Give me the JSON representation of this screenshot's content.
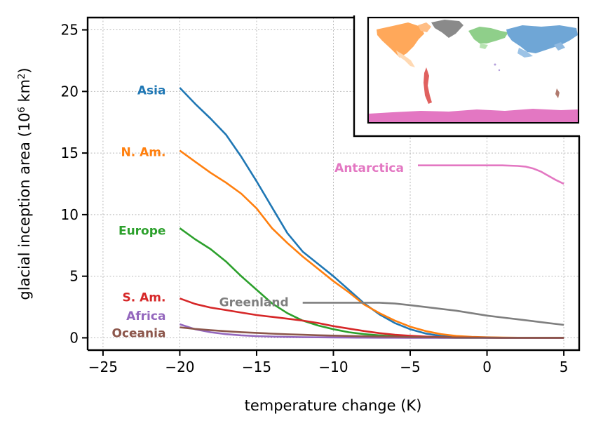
{
  "chart_data": {
    "type": "line",
    "xlabel": "temperature change (K)",
    "ylabel": {
      "main": "glacial inception area (10",
      "sup1": "6",
      "mid": " km",
      "sup2": "2",
      "end": ")"
    },
    "xlim": [
      -26,
      6
    ],
    "ylim": [
      -1,
      26
    ],
    "xticks": [
      -25,
      -20,
      -15,
      -10,
      -5,
      0,
      5
    ],
    "xtick_labels": [
      "−25",
      "−20",
      "−15",
      "−10",
      "−5",
      "0",
      "5"
    ],
    "yticks": [
      0,
      5,
      10,
      15,
      20,
      25
    ],
    "ytick_labels": [
      "0",
      "5",
      "10",
      "15",
      "20",
      "25"
    ],
    "grid": true,
    "legend": "inline labels at line starts",
    "series": [
      {
        "name": "Asia",
        "color": "#1f77b4",
        "label_y": 20.1,
        "x": [
          -20,
          -19,
          -18,
          -17,
          -16,
          -15,
          -14,
          -13,
          -12,
          -11,
          -10,
          -9,
          -8,
          -7,
          -6,
          -5,
          -4,
          -3,
          -2,
          -1,
          0,
          1,
          2,
          3,
          4,
          5
        ],
        "y": [
          20.3,
          19.0,
          17.8,
          16.5,
          14.7,
          12.7,
          10.6,
          8.5,
          7.0,
          6.0,
          5.0,
          3.9,
          2.8,
          1.9,
          1.2,
          0.7,
          0.35,
          0.15,
          0.07,
          0.03,
          0.01,
          0.0,
          0.0,
          0.0,
          0.0,
          0.0
        ]
      },
      {
        "name": "N. Am.",
        "color": "#ff7f0e",
        "label_y": 15.1,
        "x": [
          -20,
          -19,
          -18,
          -17,
          -16,
          -15,
          -14,
          -13,
          -12,
          -11,
          -10,
          -9,
          -8,
          -7,
          -6,
          -5,
          -4,
          -3,
          -2,
          -1,
          0,
          1,
          2,
          3,
          4,
          5
        ],
        "y": [
          15.2,
          14.3,
          13.4,
          12.6,
          11.7,
          10.5,
          8.9,
          7.7,
          6.6,
          5.6,
          4.6,
          3.7,
          2.7,
          2.0,
          1.4,
          0.9,
          0.55,
          0.3,
          0.15,
          0.08,
          0.04,
          0.02,
          0.01,
          0.0,
          0.0,
          0.0
        ]
      },
      {
        "name": "Europe",
        "color": "#2ca02c",
        "label_y": 8.7,
        "x": [
          -20,
          -19,
          -18,
          -17,
          -16,
          -15,
          -14,
          -13,
          -12,
          -11,
          -10,
          -9,
          -8,
          -7,
          -6,
          -5,
          -4,
          -3,
          -2,
          -1,
          0,
          1,
          2,
          3,
          4,
          5
        ],
        "y": [
          8.9,
          8.0,
          7.2,
          6.2,
          5.0,
          3.9,
          2.8,
          2.0,
          1.4,
          1.0,
          0.7,
          0.45,
          0.3,
          0.2,
          0.12,
          0.06,
          0.03,
          0.01,
          0.0,
          0.0,
          0.0,
          0.0,
          0.0,
          0.0,
          0.0,
          0.0
        ]
      },
      {
        "name": "S. Am.",
        "color": "#d62728",
        "label_y": 3.3,
        "x": [
          -20,
          -19,
          -18,
          -17,
          -16,
          -15,
          -14,
          -13,
          -12,
          -11,
          -10,
          -9,
          -8,
          -7,
          -6,
          -5,
          -4,
          -3,
          -2,
          -1,
          0,
          1,
          2,
          3,
          4,
          5
        ],
        "y": [
          3.2,
          2.75,
          2.45,
          2.25,
          2.05,
          1.85,
          1.7,
          1.55,
          1.4,
          1.2,
          0.95,
          0.75,
          0.55,
          0.38,
          0.25,
          0.16,
          0.1,
          0.06,
          0.03,
          0.02,
          0.01,
          0.0,
          0.0,
          0.0,
          0.0,
          0.0
        ]
      },
      {
        "name": "Greenland",
        "color": "#7f7f7f",
        "label_y": 2.9,
        "x": [
          -12,
          -11,
          -10,
          -9,
          -8,
          -7,
          -6,
          -5,
          -4,
          -3,
          -2,
          -1,
          0,
          1,
          2,
          3,
          4,
          5
        ],
        "y": [
          2.85,
          2.85,
          2.85,
          2.85,
          2.85,
          2.85,
          2.78,
          2.65,
          2.5,
          2.35,
          2.2,
          2.0,
          1.8,
          1.65,
          1.5,
          1.35,
          1.2,
          1.05
        ]
      },
      {
        "name": "Africa",
        "color": "#9467bd",
        "label_y": 1.8,
        "x": [
          -20,
          -19,
          -18,
          -17,
          -16,
          -15,
          -14,
          -13,
          -12,
          -11,
          -10,
          -9,
          -8,
          -7,
          -6,
          -5,
          -4,
          -3,
          -2,
          -1,
          0,
          1,
          2,
          3,
          4,
          5
        ],
        "y": [
          1.1,
          0.7,
          0.45,
          0.3,
          0.2,
          0.14,
          0.1,
          0.07,
          0.05,
          0.04,
          0.03,
          0.02,
          0.015,
          0.01,
          0.008,
          0.005,
          0.004,
          0.003,
          0.002,
          0.001,
          0.0,
          0.0,
          0.0,
          0.0,
          0.0,
          0.0
        ]
      },
      {
        "name": "Oceania",
        "color": "#8c564b",
        "label_y": 0.4,
        "x": [
          -20,
          -19,
          -18,
          -17,
          -16,
          -15,
          -14,
          -13,
          -12,
          -11,
          -10,
          -9,
          -8,
          -7,
          -6,
          -5,
          -4,
          -3,
          -2,
          -1,
          0,
          1,
          2,
          3,
          4,
          5
        ],
        "y": [
          0.85,
          0.72,
          0.62,
          0.53,
          0.46,
          0.4,
          0.34,
          0.29,
          0.25,
          0.21,
          0.18,
          0.15,
          0.12,
          0.1,
          0.08,
          0.06,
          0.05,
          0.04,
          0.03,
          0.02,
          0.02,
          0.01,
          0.01,
          0.01,
          0.01,
          0.01
        ]
      },
      {
        "name": "Antarctica",
        "color": "#e377c2",
        "label_y": 13.8,
        "x": [
          -4.5,
          -4,
          -3,
          -2,
          -1,
          0,
          1,
          2,
          2.5,
          3,
          3.5,
          4,
          4.5,
          5
        ],
        "y": [
          14.0,
          14.0,
          14.0,
          14.0,
          14.0,
          14.0,
          14.0,
          13.95,
          13.9,
          13.75,
          13.5,
          13.15,
          12.8,
          12.5
        ]
      }
    ]
  }
}
